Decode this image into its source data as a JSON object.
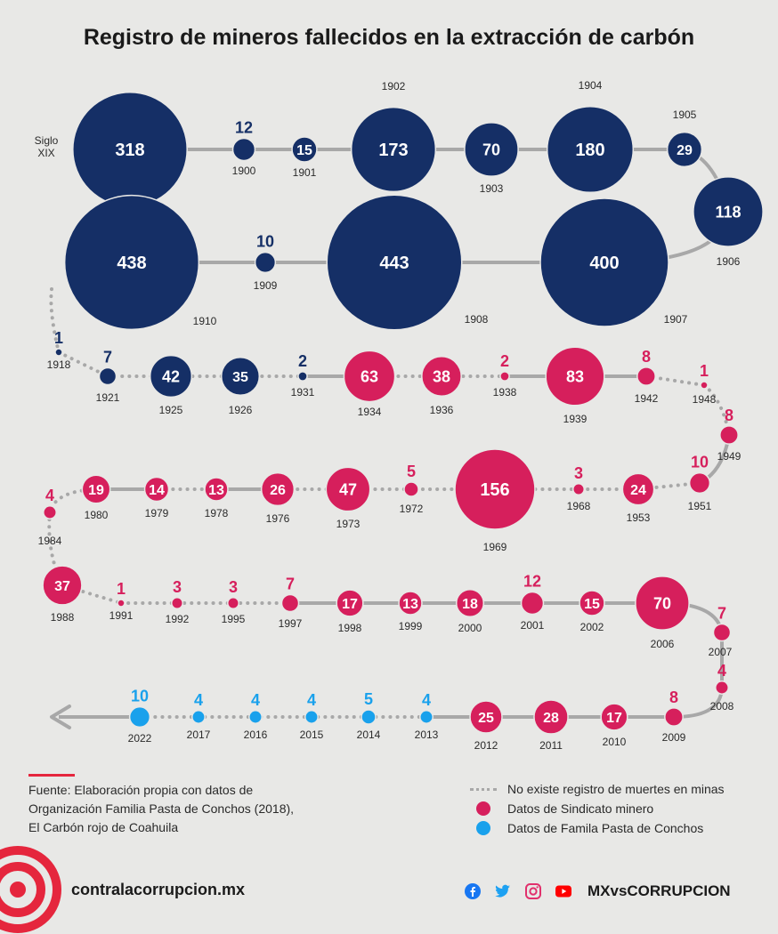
{
  "title": "Registro de mineros fallecidos en la extracción de carbón",
  "source": {
    "line1": "Fuente: Elaboración propia con datos de",
    "line2": "Organización Familia Pasta de Conchos (2018),",
    "line3": "El Carbón rojo de Coahuila"
  },
  "legend": {
    "no_record": "No existe registro de muertes en minas",
    "sindicato": "Datos de Sindicato minero",
    "familia": "Datos de Famila Pasta de Conchos"
  },
  "footer": {
    "site": "contralacorrupcion.mx",
    "brand": "MXvsCORRUPCION"
  },
  "colors": {
    "early": "#152f66",
    "sindicato": "#d61f5c",
    "familia": "#19a1ec",
    "connector": "#a8a8a8",
    "accent": "#e5263d"
  },
  "icons": [
    "facebook-icon",
    "twitter-icon",
    "instagram-icon",
    "youtube-icon"
  ],
  "chart_data": {
    "type": "bubble-timeline",
    "title": "Registro de mineros fallecidos en la extracción de carbón",
    "series": [
      {
        "name": "Datos de Sindicato minero",
        "color": "#d61f5c"
      },
      {
        "name": "Datos de Famila Pasta de Conchos",
        "color": "#19a1ec"
      }
    ],
    "points": [
      {
        "year": "Siglo XIX",
        "value": 318,
        "source": "early"
      },
      {
        "year": "1900",
        "value": 12,
        "source": "early"
      },
      {
        "year": "1901",
        "value": 15,
        "source": "early"
      },
      {
        "year": "1902",
        "value": 173,
        "source": "early"
      },
      {
        "year": "1903",
        "value": 70,
        "source": "early"
      },
      {
        "year": "1904",
        "value": 180,
        "source": "early"
      },
      {
        "year": "1905",
        "value": 29,
        "source": "early"
      },
      {
        "year": "1906",
        "value": 118,
        "source": "early"
      },
      {
        "year": "1907",
        "value": 400,
        "source": "early"
      },
      {
        "year": "1908",
        "value": 443,
        "source": "early"
      },
      {
        "year": "1909",
        "value": 10,
        "source": "early"
      },
      {
        "year": "1910",
        "value": 438,
        "source": "early"
      },
      {
        "year": "1918",
        "value": 1,
        "source": "early"
      },
      {
        "year": "1921",
        "value": 7,
        "source": "early"
      },
      {
        "year": "1925",
        "value": 42,
        "source": "early"
      },
      {
        "year": "1926",
        "value": 35,
        "source": "early"
      },
      {
        "year": "1931",
        "value": 2,
        "source": "early"
      },
      {
        "year": "1934",
        "value": 63,
        "source": "sindicato"
      },
      {
        "year": "1936",
        "value": 38,
        "source": "sindicato"
      },
      {
        "year": "1938",
        "value": 2,
        "source": "sindicato"
      },
      {
        "year": "1939",
        "value": 83,
        "source": "sindicato"
      },
      {
        "year": "1942",
        "value": 8,
        "source": "sindicato"
      },
      {
        "year": "1948",
        "value": 1,
        "source": "sindicato"
      },
      {
        "year": "1949",
        "value": 8,
        "source": "sindicato"
      },
      {
        "year": "1951",
        "value": 10,
        "source": "sindicato"
      },
      {
        "year": "1953",
        "value": 24,
        "source": "sindicato"
      },
      {
        "year": "1968",
        "value": 3,
        "source": "sindicato"
      },
      {
        "year": "1969",
        "value": 156,
        "source": "sindicato"
      },
      {
        "year": "1972",
        "value": 5,
        "source": "sindicato"
      },
      {
        "year": "1973",
        "value": 47,
        "source": "sindicato"
      },
      {
        "year": "1976",
        "value": 26,
        "source": "sindicato"
      },
      {
        "year": "1978",
        "value": 13,
        "source": "sindicato"
      },
      {
        "year": "1979",
        "value": 14,
        "source": "sindicato"
      },
      {
        "year": "1980",
        "value": 19,
        "source": "sindicato"
      },
      {
        "year": "1984",
        "value": 4,
        "source": "sindicato"
      },
      {
        "year": "1988",
        "value": 37,
        "source": "sindicato"
      },
      {
        "year": "1991",
        "value": 1,
        "source": "sindicato"
      },
      {
        "year": "1992",
        "value": 3,
        "source": "sindicato"
      },
      {
        "year": "1995",
        "value": 3,
        "source": "sindicato"
      },
      {
        "year": "1997",
        "value": 7,
        "source": "sindicato"
      },
      {
        "year": "1998",
        "value": 17,
        "source": "sindicato"
      },
      {
        "year": "1999",
        "value": 13,
        "source": "sindicato"
      },
      {
        "year": "2000",
        "value": 18,
        "source": "sindicato"
      },
      {
        "year": "2001",
        "value": 12,
        "source": "sindicato"
      },
      {
        "year": "2002",
        "value": 15,
        "source": "sindicato"
      },
      {
        "year": "2006",
        "value": 70,
        "source": "sindicato"
      },
      {
        "year": "2007",
        "value": 7,
        "source": "sindicato"
      },
      {
        "year": "2008",
        "value": 4,
        "source": "sindicato"
      },
      {
        "year": "2009",
        "value": 8,
        "source": "sindicato"
      },
      {
        "year": "2010",
        "value": 17,
        "source": "sindicato"
      },
      {
        "year": "2011",
        "value": 28,
        "source": "sindicato"
      },
      {
        "year": "2012",
        "value": 25,
        "source": "sindicato"
      },
      {
        "year": "2013",
        "value": 4,
        "source": "familia"
      },
      {
        "year": "2014",
        "value": 5,
        "source": "familia"
      },
      {
        "year": "2015",
        "value": 4,
        "source": "familia"
      },
      {
        "year": "2016",
        "value": 4,
        "source": "familia"
      },
      {
        "year": "2017",
        "value": 4,
        "source": "familia"
      },
      {
        "year": "2022",
        "value": 10,
        "source": "familia"
      }
    ]
  }
}
